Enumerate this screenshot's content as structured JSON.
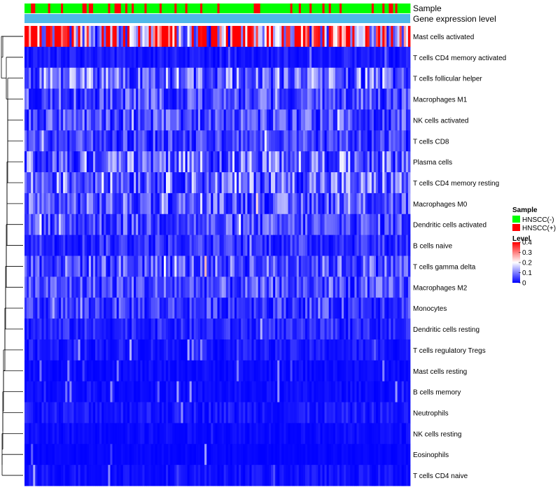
{
  "chart_data": {
    "type": "heatmap",
    "title": "",
    "annotation_tracks": [
      "Sample",
      "Gene expression level"
    ],
    "rows": [
      {
        "label": "Mast cells activated",
        "mean": 0.28
      },
      {
        "label": "T cells CD4 memory activated",
        "mean": 0.02
      },
      {
        "label": "T cells follicular helper",
        "mean": 0.09
      },
      {
        "label": "Macrophages M1",
        "mean": 0.06
      },
      {
        "label": "NK cells activated",
        "mean": 0.06
      },
      {
        "label": "T cells CD8",
        "mean": 0.05
      },
      {
        "label": "Plasma cells",
        "mean": 0.09
      },
      {
        "label": "T cells CD4 memory resting",
        "mean": 0.09
      },
      {
        "label": "Macrophages M0",
        "mean": 0.07
      },
      {
        "label": "Dendritic cells activated",
        "mean": 0.06
      },
      {
        "label": "B cells naive",
        "mean": 0.04
      },
      {
        "label": "T cells gamma delta",
        "mean": 0.07
      },
      {
        "label": "Macrophages M2",
        "mean": 0.06
      },
      {
        "label": "Monocytes",
        "mean": 0.05
      },
      {
        "label": "Dendritic cells resting",
        "mean": 0.03
      },
      {
        "label": "T cells regulatory  Tregs",
        "mean": 0.02
      },
      {
        "label": "Mast cells resting",
        "mean": 0.01
      },
      {
        "label": "B cells memory",
        "mean": 0.01
      },
      {
        "label": "Neutrophils",
        "mean": 0.02
      },
      {
        "label": "NK cells resting",
        "mean": 0.01
      },
      {
        "label": "Eosinophils",
        "mean": 0.005
      },
      {
        "label": "T cells CD4 naive",
        "mean": 0.015
      }
    ],
    "n_columns": 180,
    "sample_groups": [
      "HNSCC(-)",
      "HNSCC(+)"
    ],
    "sample_group_fraction_positive": 0.22,
    "legend": {
      "sample_title": "Sample",
      "sample_items": [
        {
          "label": "HNSCC(-)",
          "color": "#00ff00"
        },
        {
          "label": "HNSCC(+)",
          "color": "#ff0000"
        }
      ],
      "level_title": "Level",
      "level_ticks": [
        {
          "label": "0.4",
          "value": 0.4
        },
        {
          "label": "0.3",
          "value": 0.3
        },
        {
          "label": "0.2",
          "value": 0.2
        },
        {
          "label": "0.1",
          "value": 0.1
        },
        {
          "label": "0",
          "value": 0
        }
      ],
      "value_range": [
        0,
        0.4
      ],
      "placement": "right"
    },
    "colors": {
      "low": "#0000ff",
      "mid": "#ffffff",
      "high": "#ff0000",
      "track_expression": "#4fb8e8"
    }
  }
}
